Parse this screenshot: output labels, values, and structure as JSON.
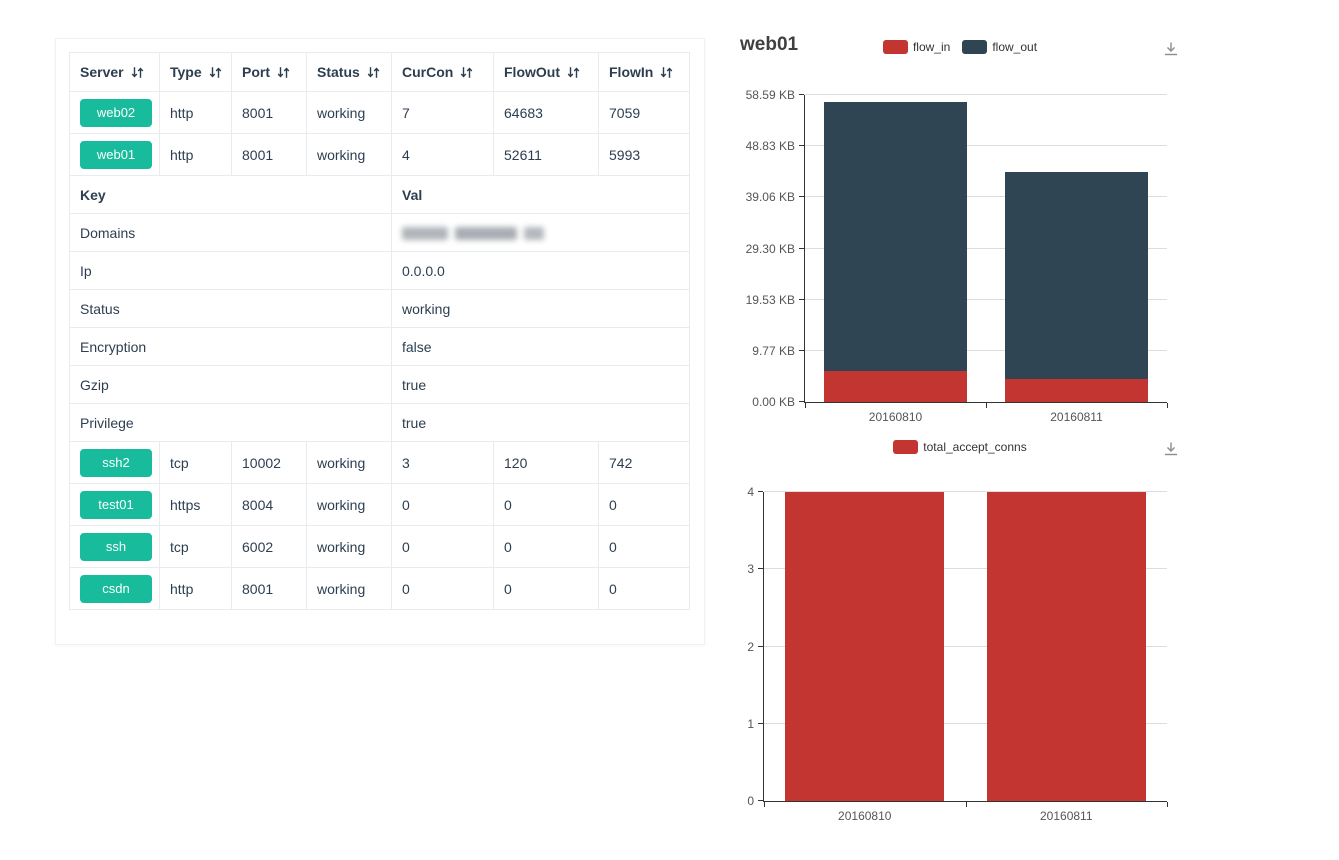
{
  "colors": {
    "accent_green": "#18bc9c",
    "flow_in_red": "#c23531",
    "flow_out_dark": "#2f4554",
    "text_dark": "#2c3e50",
    "table_border": "#e8ecee"
  },
  "icons": {
    "sort": "up-down-arrows",
    "download": "tray-arrow-down"
  },
  "server_table": {
    "columns": [
      "Server",
      "Type",
      "Port",
      "Status",
      "CurCon",
      "FlowOut",
      "FlowIn"
    ],
    "rows_top": [
      {
        "server": "web02",
        "type": "http",
        "port": "8001",
        "status": "working",
        "curcon": "7",
        "flowout": "64683",
        "flowin": "7059"
      },
      {
        "server": "web01",
        "type": "http",
        "port": "8001",
        "status": "working",
        "curcon": "4",
        "flowout": "52611",
        "flowin": "5993"
      }
    ],
    "kv_section": {
      "key_header": "Key",
      "val_header": "Val",
      "rows": [
        {
          "key": "Domains",
          "val": "",
          "redacted": true
        },
        {
          "key": "Ip",
          "val": "0.0.0.0"
        },
        {
          "key": "Status",
          "val": "working"
        },
        {
          "key": "Encryption",
          "val": "false"
        },
        {
          "key": "Gzip",
          "val": "true"
        },
        {
          "key": "Privilege",
          "val": "true"
        }
      ]
    },
    "rows_bottom": [
      {
        "server": "ssh2",
        "type": "tcp",
        "port": "10002",
        "status": "working",
        "curcon": "3",
        "flowout": "120",
        "flowin": "742"
      },
      {
        "server": "test01",
        "type": "https",
        "port": "8004",
        "status": "working",
        "curcon": "0",
        "flowout": "0",
        "flowin": "0"
      },
      {
        "server": "ssh",
        "type": "tcp",
        "port": "6002",
        "status": "working",
        "curcon": "0",
        "flowout": "0",
        "flowin": "0"
      },
      {
        "server": "csdn",
        "type": "http",
        "port": "8001",
        "status": "working",
        "curcon": "0",
        "flowout": "0",
        "flowin": "0"
      }
    ]
  },
  "chart_data": [
    {
      "type": "bar",
      "stacked": true,
      "title": "web01",
      "categories": [
        "20160810",
        "20160811"
      ],
      "series": [
        {
          "name": "flow_in",
          "color": "#c23531",
          "values": [
            5.85,
            4.4
          ]
        },
        {
          "name": "flow_out",
          "color": "#2f4554",
          "values": [
            51.4,
            39.5
          ]
        }
      ],
      "y_unit": "KB",
      "ymax": 58.59,
      "ylim": [
        0,
        58.59
      ],
      "y_ticks": [
        "0.00 KB",
        "9.77 KB",
        "19.53 KB",
        "29.30 KB",
        "39.06 KB",
        "48.83 KB",
        "58.59 KB"
      ],
      "legend_position": "top-center",
      "grid": true
    },
    {
      "type": "bar",
      "stacked": false,
      "title": "",
      "categories": [
        "20160810",
        "20160811"
      ],
      "series": [
        {
          "name": "total_accept_conns",
          "color": "#c23531",
          "values": [
            4,
            4
          ]
        }
      ],
      "ymax": 4,
      "ylim": [
        0,
        4
      ],
      "y_ticks": [
        "0",
        "1",
        "2",
        "3",
        "4"
      ],
      "legend_position": "top-center",
      "grid": true
    }
  ]
}
